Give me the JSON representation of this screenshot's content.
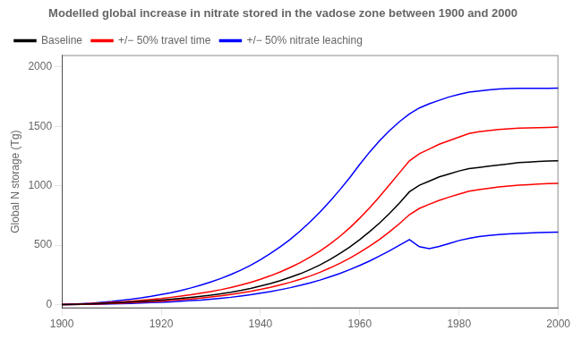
{
  "chart_data": {
    "type": "line",
    "title": "Modelled global increase in nitrate stored in the vadose zone between 1900 and 2000",
    "ylabel": "Global N storage (Tg)",
    "x": [
      1900,
      1902,
      1904,
      1906,
      1908,
      1910,
      1912,
      1914,
      1916,
      1918,
      1920,
      1922,
      1924,
      1926,
      1928,
      1930,
      1932,
      1934,
      1936,
      1938,
      1940,
      1942,
      1944,
      1946,
      1948,
      1950,
      1952,
      1954,
      1956,
      1958,
      1960,
      1962,
      1964,
      1966,
      1968,
      1970,
      1972,
      1974,
      1976,
      1978,
      1980,
      1982,
      1984,
      1986,
      1988,
      1990,
      1992,
      1994,
      1996,
      1998,
      2000
    ],
    "series": [
      {
        "name": "Baseline",
        "color": "black",
        "values": [
          0,
          2,
          4,
          7,
          10,
          14,
          18,
          23,
          28,
          33,
          39,
          46,
          53,
          61,
          70,
          80,
          92,
          105,
          120,
          137,
          157,
          178,
          202,
          230,
          260,
          295,
          335,
          380,
          430,
          485,
          548,
          615,
          688,
          768,
          855,
          950,
          1005,
          1040,
          1075,
          1100,
          1125,
          1145,
          1155,
          1165,
          1175,
          1185,
          1195,
          1200,
          1205,
          1208,
          1210
        ]
      },
      {
        "name": "+/− 50% travel time",
        "color": "red",
        "upper": [
          0,
          3,
          6,
          10,
          14,
          19,
          24,
          30,
          37,
          44,
          52,
          62,
          72,
          83,
          96,
          110,
          126,
          144,
          164,
          187,
          213,
          243,
          276,
          313,
          354,
          400,
          452,
          510,
          575,
          647,
          728,
          815,
          910,
          1010,
          1110,
          1210,
          1270,
          1310,
          1350,
          1380,
          1410,
          1440,
          1455,
          1465,
          1475,
          1480,
          1485,
          1488,
          1490,
          1492,
          1494
        ],
        "lower": [
          0,
          1,
          3,
          5,
          7,
          10,
          13,
          17,
          21,
          25,
          30,
          36,
          42,
          48,
          56,
          65,
          75,
          86,
          98,
          112,
          128,
          146,
          166,
          188,
          213,
          241,
          273,
          309,
          348,
          391,
          440,
          493,
          550,
          613,
          682,
          757,
          810,
          845,
          878,
          905,
          930,
          955,
          968,
          980,
          990,
          998,
          1005,
          1010,
          1015,
          1018,
          1020
        ]
      },
      {
        "name": "+/− 50% nitrate leaching",
        "color": "blue",
        "upper": [
          0,
          4,
          8,
          13,
          20,
          27,
          36,
          46,
          57,
          70,
          85,
          101,
          120,
          141,
          164,
          191,
          220,
          253,
          290,
          331,
          378,
          430,
          487,
          550,
          620,
          697,
          780,
          870,
          967,
          1070,
          1180,
          1285,
          1380,
          1465,
          1540,
          1605,
          1655,
          1690,
          1720,
          1748,
          1770,
          1788,
          1798,
          1808,
          1814,
          1818,
          1820,
          1821,
          1821,
          1821,
          1822
        ],
        "lower": [
          0,
          1,
          2,
          3,
          5,
          7,
          9,
          11,
          14,
          17,
          20,
          24,
          29,
          34,
          39,
          46,
          54,
          62,
          72,
          83,
          96,
          110,
          126,
          143,
          162,
          183,
          207,
          234,
          263,
          295,
          330,
          368,
          410,
          454,
          500,
          548,
          488,
          472,
          490,
          515,
          540,
          558,
          572,
          582,
          590,
          596,
          600,
          603,
          606,
          608,
          610
        ]
      }
    ],
    "xlim": [
      1900,
      2000
    ],
    "ylim": [
      -30,
      2100
    ],
    "xticks": [
      1900,
      1920,
      1940,
      1960,
      1980,
      2000
    ],
    "yticks": [
      0,
      500,
      1000,
      1500,
      2000
    ],
    "grid": false,
    "legend": "upper left"
  }
}
